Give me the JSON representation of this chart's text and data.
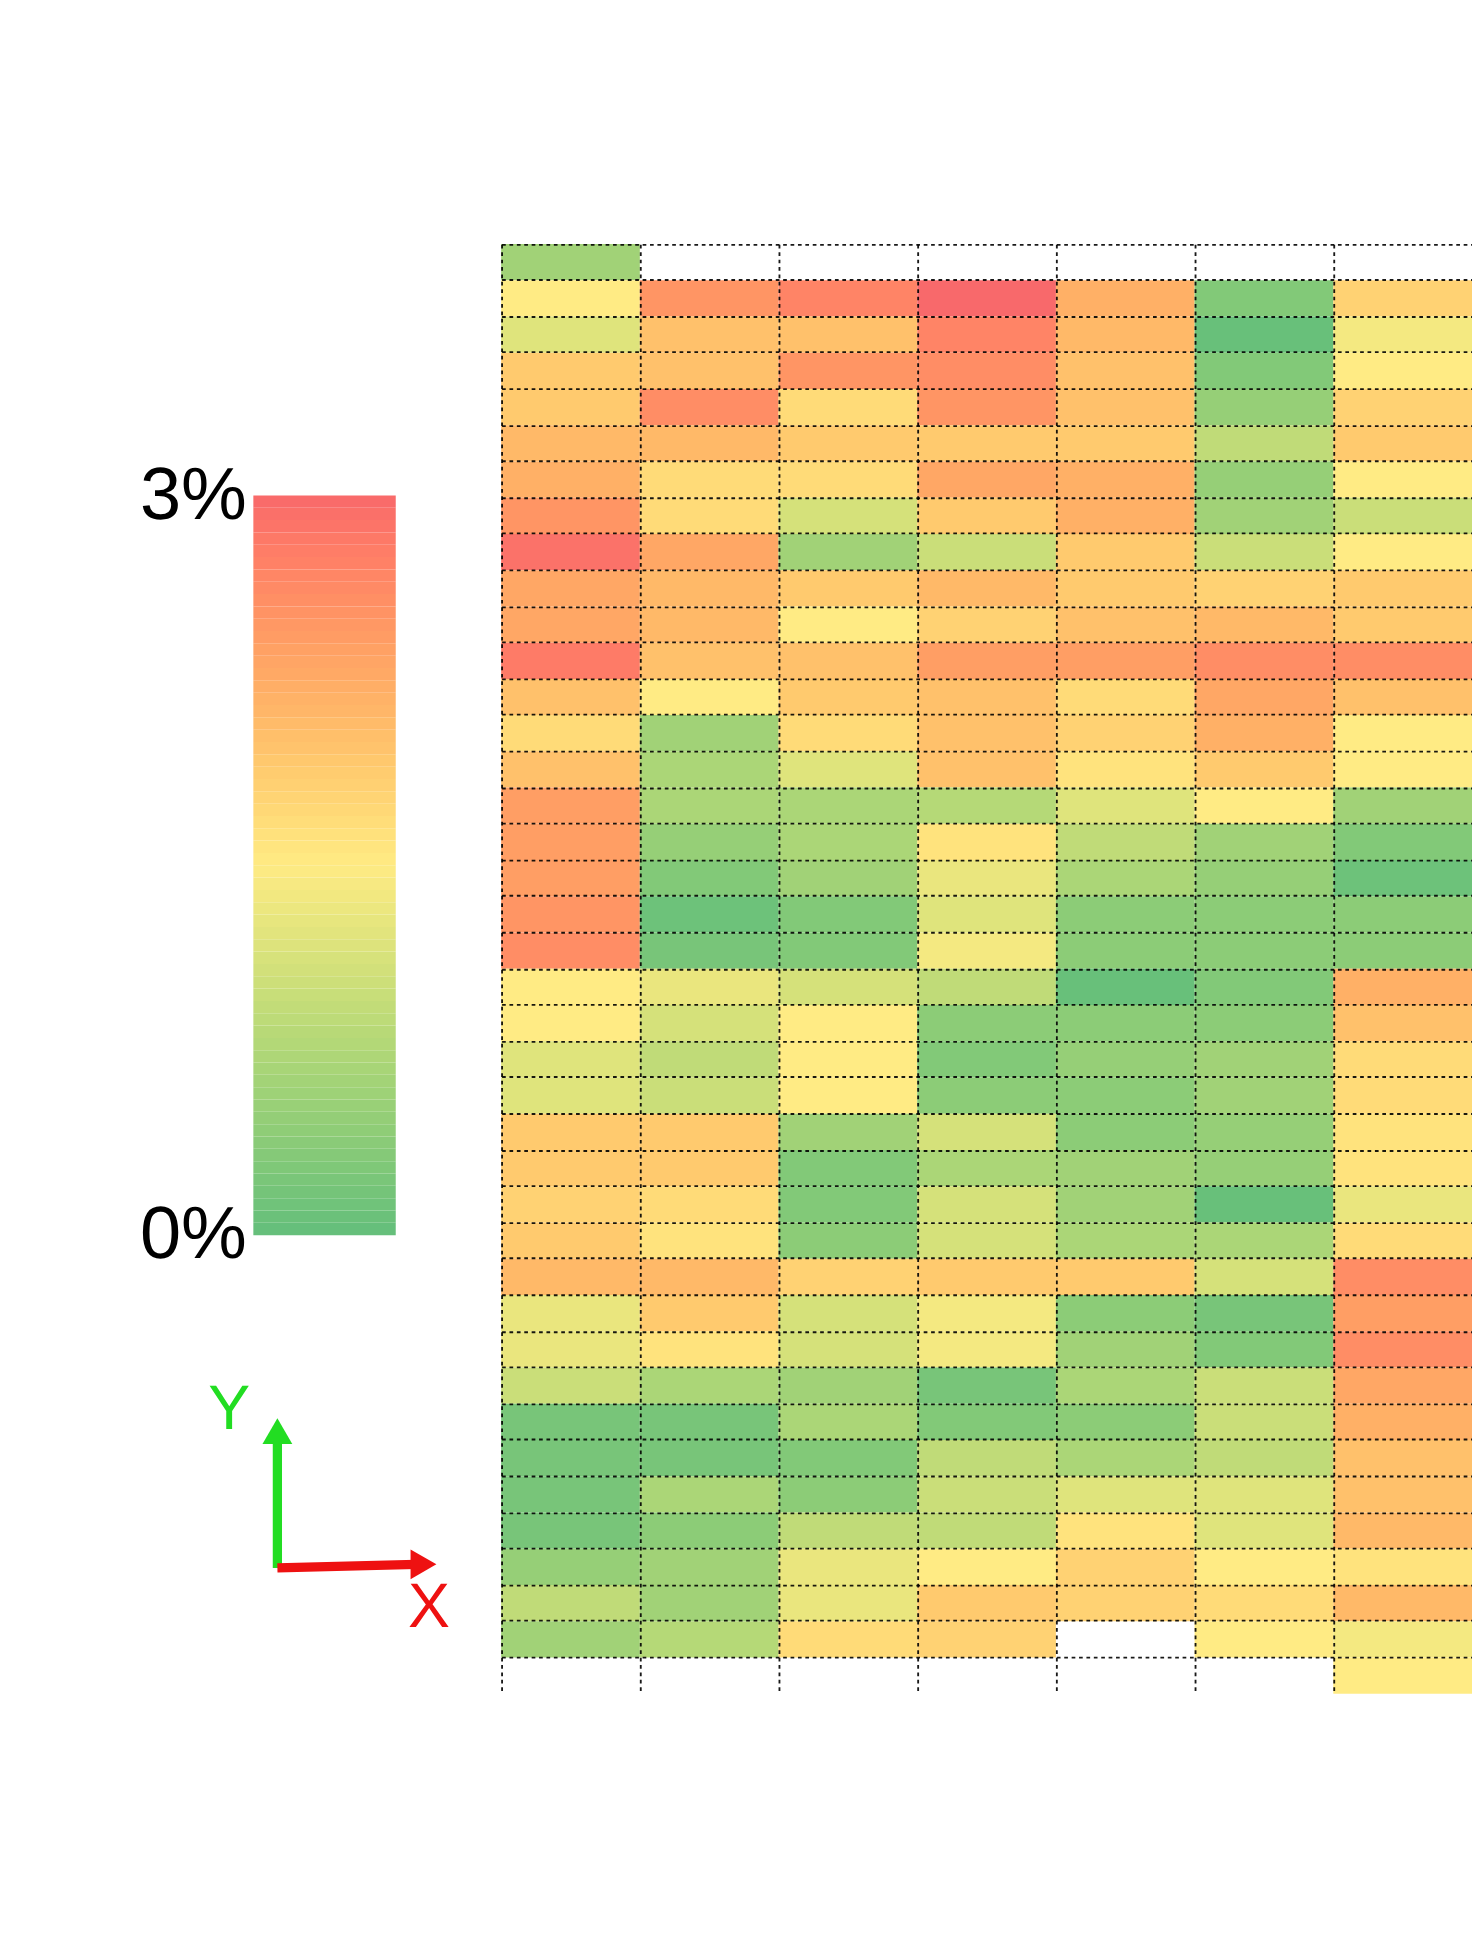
{
  "chart_data": {
    "type": "heatmap",
    "categories": [
      null,
      null,
      null,
      null,
      null,
      null,
      null
    ],
    "y_categories": [
      null,
      null,
      null,
      null,
      null,
      null,
      null,
      null,
      null,
      null,
      null,
      null,
      null,
      null,
      null,
      null,
      null,
      null,
      null,
      null,
      null,
      null,
      null,
      null,
      null,
      null,
      null,
      null,
      null,
      null,
      null,
      null,
      null,
      null,
      null,
      null,
      null,
      null,
      null,
      null
    ],
    "cells": [
      [
        0.6,
        null,
        null,
        null,
        null,
        null,
        null
      ],
      [
        1.5,
        2.5,
        2.7,
        3.0,
        2.2,
        0.3,
        1.8
      ],
      [
        1.2,
        2.0,
        2.0,
        2.7,
        2.1,
        0.05,
        1.4
      ],
      [
        1.9,
        2.0,
        2.5,
        2.6,
        2.0,
        0.3,
        1.5
      ],
      [
        1.9,
        2.6,
        1.7,
        2.5,
        2.0,
        0.5,
        1.8
      ],
      [
        2.1,
        2.1,
        1.9,
        1.9,
        1.9,
        0.9,
        1.9
      ],
      [
        2.2,
        1.7,
        1.7,
        2.3,
        2.2,
        0.5,
        1.5
      ],
      [
        2.5,
        1.7,
        1.1,
        1.9,
        2.2,
        0.6,
        1.0
      ],
      [
        2.9,
        2.3,
        0.6,
        1.0,
        1.9,
        1.0,
        1.5
      ],
      [
        2.3,
        2.1,
        1.9,
        2.1,
        1.9,
        1.8,
        1.9
      ],
      [
        2.3,
        2.1,
        1.5,
        1.8,
        2.0,
        2.1,
        1.9
      ],
      [
        2.8,
        2.0,
        2.0,
        2.4,
        2.4,
        2.6,
        2.6
      ],
      [
        2.0,
        1.5,
        1.9,
        2.0,
        1.7,
        2.3,
        2.0
      ],
      [
        1.7,
        0.6,
        1.7,
        2.0,
        1.8,
        2.2,
        1.5
      ],
      [
        2.0,
        0.7,
        1.2,
        2.0,
        1.6,
        1.9,
        1.5
      ],
      [
        2.4,
        0.7,
        0.7,
        0.8,
        1.2,
        1.5,
        0.6
      ],
      [
        2.4,
        0.5,
        0.7,
        1.6,
        0.9,
        0.6,
        0.3
      ],
      [
        2.4,
        0.3,
        0.6,
        1.3,
        0.7,
        0.5,
        0.1
      ],
      [
        2.5,
        0.1,
        0.3,
        1.2,
        0.4,
        0.4,
        0.4
      ],
      [
        2.6,
        0.2,
        0.3,
        1.4,
        0.4,
        0.4,
        0.4
      ],
      [
        1.5,
        1.3,
        1.1,
        0.9,
        0.05,
        0.3,
        2.2
      ],
      [
        1.5,
        1.1,
        1.5,
        0.4,
        0.4,
        0.4,
        2.0
      ],
      [
        1.2,
        0.9,
        1.5,
        0.3,
        0.5,
        0.6,
        1.7
      ],
      [
        1.2,
        1.0,
        1.5,
        0.4,
        0.4,
        0.6,
        1.7
      ],
      [
        1.9,
        1.9,
        0.6,
        1.1,
        0.4,
        0.5,
        1.6
      ],
      [
        1.9,
        1.9,
        0.3,
        0.7,
        0.6,
        0.5,
        1.6
      ],
      [
        1.8,
        1.7,
        0.3,
        1.1,
        0.6,
        0.05,
        1.3
      ],
      [
        1.9,
        1.6,
        0.4,
        1.1,
        0.7,
        0.7,
        1.7
      ],
      [
        2.1,
        2.1,
        1.8,
        1.9,
        1.9,
        1.1,
        2.6
      ],
      [
        1.3,
        1.9,
        1.1,
        1.4,
        0.4,
        0.2,
        2.4
      ],
      [
        1.3,
        1.6,
        1.1,
        1.4,
        0.6,
        0.3,
        2.6
      ],
      [
        1.0,
        0.7,
        0.6,
        0.2,
        0.7,
        1.0,
        2.3
      ],
      [
        0.2,
        0.2,
        0.7,
        0.3,
        0.4,
        1.0,
        2.2
      ],
      [
        0.2,
        0.2,
        0.3,
        0.9,
        0.7,
        0.9,
        2.0
      ],
      [
        0.2,
        0.7,
        0.4,
        1.0,
        1.2,
        1.2,
        2.0
      ],
      [
        0.2,
        0.4,
        0.9,
        0.9,
        1.6,
        1.2,
        2.1
      ],
      [
        0.5,
        0.6,
        1.3,
        1.5,
        1.8,
        1.5,
        1.6
      ],
      [
        0.9,
        0.6,
        1.3,
        1.9,
        1.8,
        1.7,
        2.1
      ],
      [
        0.6,
        0.8,
        1.7,
        1.8,
        null,
        1.5,
        1.4
      ],
      [
        null,
        null,
        null,
        null,
        null,
        null,
        1.5
      ]
    ],
    "clim": [
      0,
      3
    ],
    "cticks": [
      {
        "value": 0,
        "label": "0%"
      },
      {
        "value": 3,
        "label": "3%"
      }
    ],
    "grid": true,
    "annotations": [
      "Y",
      "X"
    ]
  }
}
